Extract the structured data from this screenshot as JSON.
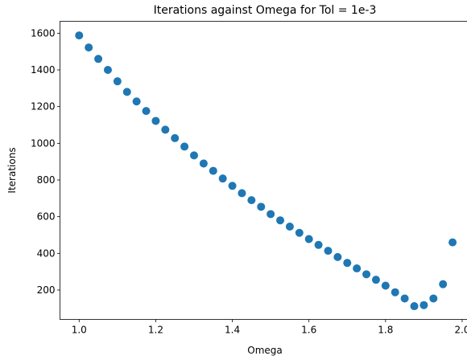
{
  "chart_data": {
    "type": "scatter",
    "title": "Iterations against Omega for Tol = 1e-3",
    "xlabel": "Omega",
    "ylabel": "Iterations",
    "xlim": [
      0.95,
      2.02
    ],
    "ylim": [
      40,
      1665
    ],
    "xticks": [
      1.0,
      1.2,
      1.4,
      1.6,
      1.8,
      2.0
    ],
    "xtick_labels": [
      "1.0",
      "1.2",
      "1.4",
      "1.6",
      "1.8",
      "2.0"
    ],
    "yticks": [
      200,
      400,
      600,
      800,
      1000,
      1200,
      1400,
      1600
    ],
    "ytick_labels": [
      "200",
      "400",
      "600",
      "800",
      "1000",
      "1200",
      "1400",
      "1600"
    ],
    "grid": false,
    "marker_color": "#1f77b4",
    "series": [
      {
        "x": [
          1.0,
          1.025,
          1.05,
          1.075,
          1.1,
          1.125,
          1.15,
          1.175,
          1.2,
          1.225,
          1.25,
          1.275,
          1.3,
          1.325,
          1.35,
          1.375,
          1.4,
          1.425,
          1.45,
          1.475,
          1.5,
          1.525,
          1.55,
          1.575,
          1.6,
          1.625,
          1.65,
          1.675,
          1.7,
          1.725,
          1.75,
          1.775,
          1.8,
          1.825,
          1.85,
          1.875,
          1.9,
          1.925,
          1.95,
          1.975
        ],
        "y": [
          1588,
          1522,
          1460,
          1400,
          1338,
          1280,
          1228,
          1176,
          1122,
          1074,
          1028,
          982,
          934,
          890,
          850,
          808,
          768,
          728,
          690,
          654,
          614,
          580,
          546,
          512,
          478,
          446,
          414,
          380,
          348,
          318,
          286,
          256,
          224,
          188,
          154,
          112,
          118,
          154,
          232,
          460
        ]
      }
    ]
  }
}
